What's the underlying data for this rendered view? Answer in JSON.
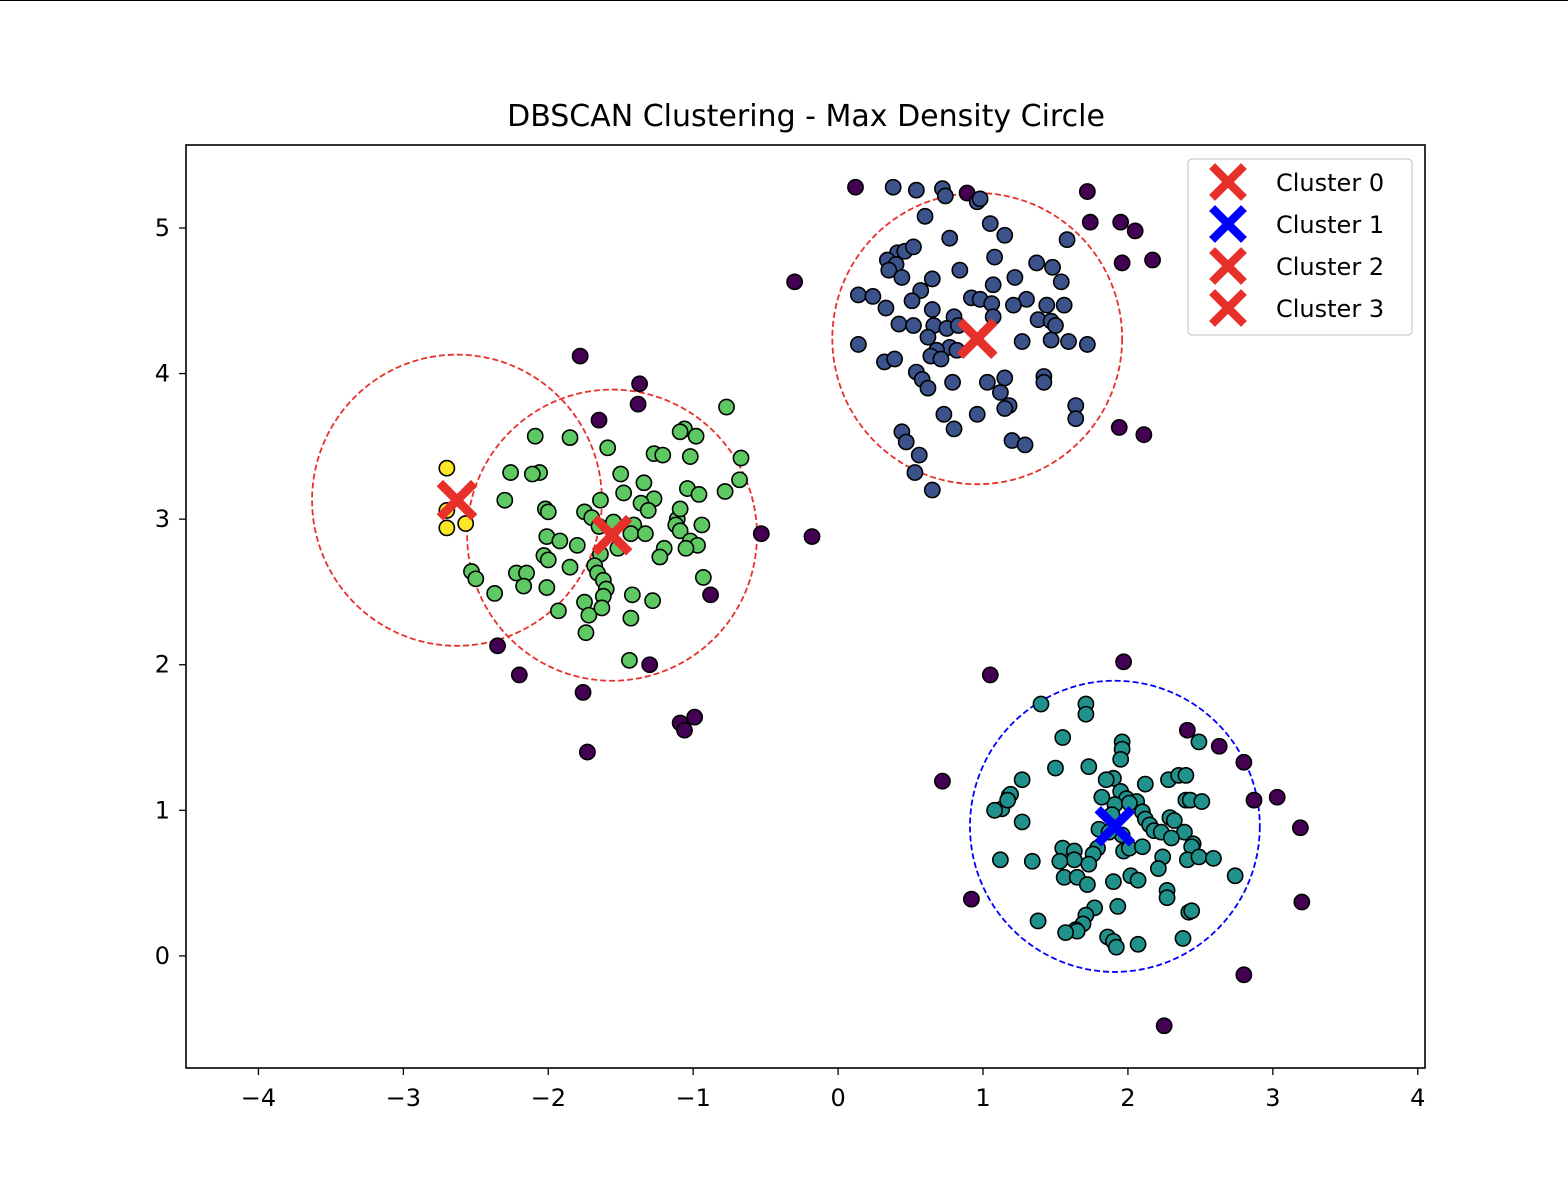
{
  "chart_data": {
    "type": "scatter",
    "title": "DBSCAN Clustering - Max Density Circle",
    "xlabel": "",
    "ylabel": "",
    "xlim": [
      -4.5,
      4.05
    ],
    "ylim": [
      -0.77,
      5.57
    ],
    "xticks": [
      -4,
      -3,
      -2,
      -1,
      0,
      1,
      2,
      3,
      4
    ],
    "xtick_labels": [
      "−4",
      "−3",
      "−2",
      "−1",
      "0",
      "1",
      "2",
      "3",
      "4"
    ],
    "yticks": [
      0,
      1,
      2,
      3,
      4,
      5
    ],
    "ytick_labels": [
      "0",
      "1",
      "2",
      "3",
      "4",
      "5"
    ],
    "grid": false,
    "legend_position": "top-right",
    "point_colors": {
      "noise": "#440154",
      "cluster_navy": "#3b528b",
      "cluster_teal": "#21918c",
      "cluster_green": "#5ec962",
      "cluster_yellow": "#fde725"
    },
    "centers": [
      {
        "name": "Cluster 0",
        "x": 0.96,
        "y": 4.24,
        "radius": 1.0,
        "color": "#e8302a"
      },
      {
        "name": "Cluster 1",
        "x": 1.91,
        "y": 0.89,
        "radius": 1.0,
        "color": "#0000ff"
      },
      {
        "name": "Cluster 2",
        "x": -1.56,
        "y": 2.89,
        "radius": 1.0,
        "color": "#e8302a"
      },
      {
        "name": "Cluster 3",
        "x": -2.63,
        "y": 3.13,
        "radius": 1.0,
        "color": "#e8302a"
      }
    ],
    "series": [
      {
        "group": "noise",
        "points": [
          [
            0.12,
            5.28
          ],
          [
            0.89,
            5.24
          ],
          [
            1.72,
            5.25
          ],
          [
            1.74,
            5.04
          ],
          [
            1.95,
            5.04
          ],
          [
            2.05,
            4.98
          ],
          [
            1.96,
            4.76
          ],
          [
            2.17,
            4.78
          ],
          [
            -0.3,
            4.63
          ],
          [
            1.94,
            3.63
          ],
          [
            2.11,
            3.58
          ],
          [
            -1.78,
            4.12
          ],
          [
            -1.37,
            3.93
          ],
          [
            -1.38,
            3.79
          ],
          [
            -1.65,
            3.68
          ],
          [
            -0.53,
            2.9
          ],
          [
            -0.18,
            2.88
          ],
          [
            -0.88,
            2.48
          ],
          [
            -2.35,
            2.13
          ],
          [
            -2.2,
            1.93
          ],
          [
            -1.3,
            2.0
          ],
          [
            -1.76,
            1.81
          ],
          [
            -1.73,
            1.4
          ],
          [
            -1.09,
            1.6
          ],
          [
            -1.06,
            1.55
          ],
          [
            -0.99,
            1.64
          ],
          [
            1.97,
            2.02
          ],
          [
            1.05,
            1.93
          ],
          [
            0.72,
            1.2
          ],
          [
            2.41,
            1.55
          ],
          [
            2.63,
            1.44
          ],
          [
            2.8,
            1.33
          ],
          [
            3.03,
            1.09
          ],
          [
            2.87,
            1.07
          ],
          [
            3.19,
            0.88
          ],
          [
            0.92,
            0.39
          ],
          [
            3.2,
            0.37
          ],
          [
            2.8,
            -0.13
          ],
          [
            2.25,
            -0.48
          ]
        ]
      },
      {
        "group": "cluster_navy",
        "points": [
          [
            0.38,
            5.28
          ],
          [
            0.54,
            5.26
          ],
          [
            0.72,
            5.27
          ],
          [
            0.74,
            5.22
          ],
          [
            0.96,
            5.18
          ],
          [
            0.98,
            5.2
          ],
          [
            0.6,
            5.08
          ],
          [
            1.05,
            5.03
          ],
          [
            1.15,
            4.95
          ],
          [
            1.58,
            4.92
          ],
          [
            0.77,
            4.93
          ],
          [
            0.41,
            4.83
          ],
          [
            0.46,
            4.84
          ],
          [
            0.52,
            4.87
          ],
          [
            0.34,
            4.78
          ],
          [
            0.4,
            4.75
          ],
          [
            1.08,
            4.8
          ],
          [
            1.37,
            4.76
          ],
          [
            1.48,
            4.73
          ],
          [
            0.35,
            4.71
          ],
          [
            0.44,
            4.66
          ],
          [
            0.84,
            4.71
          ],
          [
            1.22,
            4.66
          ],
          [
            1.54,
            4.63
          ],
          [
            0.65,
            4.65
          ],
          [
            1.07,
            4.61
          ],
          [
            0.57,
            4.57
          ],
          [
            0.51,
            4.5
          ],
          [
            0.14,
            4.54
          ],
          [
            0.24,
            4.53
          ],
          [
            0.92,
            4.52
          ],
          [
            0.98,
            4.51
          ],
          [
            1.3,
            4.51
          ],
          [
            1.21,
            4.47
          ],
          [
            1.44,
            4.47
          ],
          [
            1.56,
            4.47
          ],
          [
            1.06,
            4.48
          ],
          [
            0.33,
            4.45
          ],
          [
            0.65,
            4.44
          ],
          [
            0.8,
            4.39
          ],
          [
            1.07,
            4.39
          ],
          [
            1.38,
            4.37
          ],
          [
            1.47,
            4.36
          ],
          [
            1.5,
            4.33
          ],
          [
            0.42,
            4.34
          ],
          [
            0.52,
            4.33
          ],
          [
            0.66,
            4.33
          ],
          [
            0.75,
            4.31
          ],
          [
            0.62,
            4.25
          ],
          [
            0.83,
            4.33
          ],
          [
            1.27,
            4.22
          ],
          [
            1.47,
            4.23
          ],
          [
            1.59,
            4.22
          ],
          [
            1.72,
            4.2
          ],
          [
            0.14,
            4.2
          ],
          [
            0.77,
            4.18
          ],
          [
            0.82,
            4.16
          ],
          [
            0.68,
            4.16
          ],
          [
            0.64,
            4.12
          ],
          [
            0.71,
            4.1
          ],
          [
            0.32,
            4.08
          ],
          [
            0.39,
            4.1
          ],
          [
            0.54,
            4.01
          ],
          [
            0.58,
            3.96
          ],
          [
            0.62,
            3.9
          ],
          [
            1.15,
            3.97
          ],
          [
            1.03,
            3.94
          ],
          [
            0.79,
            3.94
          ],
          [
            1.42,
            3.98
          ],
          [
            1.42,
            3.94
          ],
          [
            1.12,
            3.87
          ],
          [
            1.18,
            3.78
          ],
          [
            1.15,
            3.76
          ],
          [
            1.64,
            3.78
          ],
          [
            1.64,
            3.69
          ],
          [
            0.73,
            3.72
          ],
          [
            0.96,
            3.72
          ],
          [
            0.8,
            3.62
          ],
          [
            0.44,
            3.6
          ],
          [
            0.47,
            3.53
          ],
          [
            1.2,
            3.54
          ],
          [
            1.29,
            3.51
          ],
          [
            0.56,
            3.44
          ],
          [
            0.53,
            3.32
          ],
          [
            0.65,
            3.2
          ]
        ]
      },
      {
        "group": "cluster_teal",
        "points": [
          [
            1.4,
            1.73
          ],
          [
            1.71,
            1.73
          ],
          [
            1.71,
            1.66
          ],
          [
            1.96,
            1.47
          ],
          [
            1.96,
            1.42
          ],
          [
            1.55,
            1.5
          ],
          [
            2.49,
            1.47
          ],
          [
            1.73,
            1.3
          ],
          [
            1.5,
            1.29
          ],
          [
            1.95,
            1.35
          ],
          [
            1.9,
            1.22
          ],
          [
            2.28,
            1.21
          ],
          [
            2.35,
            1.24
          ],
          [
            2.4,
            1.24
          ],
          [
            1.85,
            1.21
          ],
          [
            1.27,
            1.21
          ],
          [
            1.18,
            1.1
          ],
          [
            1.19,
            1.11
          ],
          [
            1.13,
            1.01
          ],
          [
            1.17,
            1.07
          ],
          [
            1.08,
            1.0
          ],
          [
            1.95,
            1.13
          ],
          [
            1.99,
            1.08
          ],
          [
            2.06,
            1.06
          ],
          [
            2.1,
            0.99
          ],
          [
            1.91,
            1.04
          ],
          [
            1.82,
            1.09
          ],
          [
            2.12,
            1.18
          ],
          [
            2.01,
            1.05
          ],
          [
            1.89,
            0.97
          ],
          [
            2.12,
            0.94
          ],
          [
            2.29,
            0.95
          ],
          [
            2.15,
            0.9
          ],
          [
            2.18,
            0.86
          ],
          [
            1.96,
            0.83
          ],
          [
            2.23,
            0.85
          ],
          [
            2.4,
            1.07
          ],
          [
            2.43,
            1.07
          ],
          [
            2.51,
            1.06
          ],
          [
            2.32,
            0.93
          ],
          [
            2.39,
            0.85
          ],
          [
            2.45,
            0.77
          ],
          [
            2.44,
            0.75
          ],
          [
            2.3,
            0.81
          ],
          [
            1.27,
            0.92
          ],
          [
            1.8,
            0.87
          ],
          [
            1.87,
            0.85
          ],
          [
            1.79,
            0.74
          ],
          [
            1.55,
            0.74
          ],
          [
            1.63,
            0.72
          ],
          [
            1.63,
            0.66
          ],
          [
            1.76,
            0.7
          ],
          [
            1.73,
            0.63
          ],
          [
            1.12,
            0.66
          ],
          [
            1.34,
            0.65
          ],
          [
            1.53,
            0.65
          ],
          [
            1.56,
            0.54
          ],
          [
            1.97,
            0.72
          ],
          [
            2.01,
            0.74
          ],
          [
            2.1,
            0.75
          ],
          [
            2.24,
            0.68
          ],
          [
            2.41,
            0.66
          ],
          [
            2.49,
            0.68
          ],
          [
            2.59,
            0.67
          ],
          [
            2.74,
            0.55
          ],
          [
            2.21,
            0.6
          ],
          [
            1.65,
            0.54
          ],
          [
            1.72,
            0.49
          ],
          [
            1.9,
            0.51
          ],
          [
            2.02,
            0.55
          ],
          [
            2.07,
            0.52
          ],
          [
            2.27,
            0.45
          ],
          [
            2.27,
            0.4
          ],
          [
            1.77,
            0.33
          ],
          [
            1.93,
            0.34
          ],
          [
            2.42,
            0.3
          ],
          [
            2.44,
            0.31
          ],
          [
            1.71,
            0.28
          ],
          [
            1.38,
            0.24
          ],
          [
            1.69,
            0.22
          ],
          [
            1.64,
            0.18
          ],
          [
            1.65,
            0.17
          ],
          [
            1.57,
            0.16
          ],
          [
            1.86,
            0.13
          ],
          [
            1.9,
            0.1
          ],
          [
            1.92,
            0.06
          ],
          [
            2.07,
            0.08
          ],
          [
            2.38,
            0.12
          ]
        ]
      },
      {
        "group": "cluster_green",
        "points": [
          [
            -0.77,
            3.77
          ],
          [
            -1.06,
            3.62
          ],
          [
            -1.09,
            3.6
          ],
          [
            -0.98,
            3.57
          ],
          [
            -2.09,
            3.57
          ],
          [
            -1.85,
            3.56
          ],
          [
            -1.59,
            3.49
          ],
          [
            -1.02,
            3.43
          ],
          [
            -0.67,
            3.42
          ],
          [
            -1.27,
            3.45
          ],
          [
            -2.26,
            3.32
          ],
          [
            -2.06,
            3.32
          ],
          [
            -2.11,
            3.31
          ],
          [
            -1.5,
            3.31
          ],
          [
            -1.34,
            3.25
          ],
          [
            -1.21,
            3.44
          ],
          [
            -0.68,
            3.27
          ],
          [
            -0.78,
            3.19
          ],
          [
            -1.04,
            3.21
          ],
          [
            -0.96,
            3.17
          ],
          [
            -1.27,
            3.14
          ],
          [
            -1.48,
            3.18
          ],
          [
            -1.36,
            3.11
          ],
          [
            -1.31,
            3.06
          ],
          [
            -1.64,
            3.13
          ],
          [
            -2.3,
            3.13
          ],
          [
            -2.02,
            3.07
          ],
          [
            -2.0,
            3.05
          ],
          [
            -1.75,
            3.05
          ],
          [
            -1.7,
            3.01
          ],
          [
            -1.65,
            2.95
          ],
          [
            -1.41,
            2.96
          ],
          [
            -1.55,
            2.98
          ],
          [
            -1.11,
            3.0
          ],
          [
            -1.09,
            3.07
          ],
          [
            -1.12,
            2.96
          ],
          [
            -1.09,
            2.92
          ],
          [
            -0.94,
            2.96
          ],
          [
            -1.43,
            2.9
          ],
          [
            -1.33,
            2.9
          ],
          [
            -1.02,
            2.85
          ],
          [
            -1.2,
            2.8
          ],
          [
            -0.97,
            2.82
          ],
          [
            -1.05,
            2.8
          ],
          [
            -2.01,
            2.88
          ],
          [
            -1.92,
            2.85
          ],
          [
            -1.8,
            2.82
          ],
          [
            -1.52,
            2.8
          ],
          [
            -1.64,
            2.76
          ],
          [
            -2.03,
            2.75
          ],
          [
            -2.0,
            2.72
          ],
          [
            -1.85,
            2.67
          ],
          [
            -1.68,
            2.68
          ],
          [
            -1.66,
            2.63
          ],
          [
            -1.23,
            2.74
          ],
          [
            -2.53,
            2.64
          ],
          [
            -2.5,
            2.59
          ],
          [
            -2.22,
            2.63
          ],
          [
            -2.15,
            2.63
          ],
          [
            -2.17,
            2.54
          ],
          [
            -2.01,
            2.53
          ],
          [
            -1.62,
            2.58
          ],
          [
            -1.6,
            2.52
          ],
          [
            -1.62,
            2.47
          ],
          [
            -1.42,
            2.48
          ],
          [
            -1.28,
            2.44
          ],
          [
            -2.37,
            2.49
          ],
          [
            -1.75,
            2.43
          ],
          [
            -1.93,
            2.37
          ],
          [
            -1.72,
            2.34
          ],
          [
            -1.63,
            2.39
          ],
          [
            -1.43,
            2.32
          ],
          [
            -1.74,
            2.22
          ],
          [
            -0.93,
            2.6
          ],
          [
            -1.44,
            2.03
          ]
        ]
      },
      {
        "group": "cluster_yellow",
        "points": [
          [
            -2.7,
            3.35
          ],
          [
            -2.7,
            3.06
          ],
          [
            -2.57,
            2.97
          ],
          [
            -2.7,
            2.94
          ]
        ]
      }
    ]
  }
}
